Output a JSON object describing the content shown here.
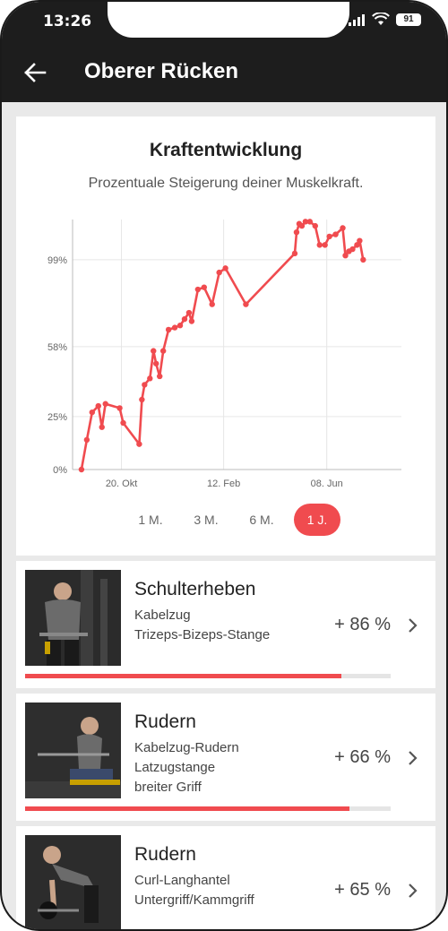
{
  "status": {
    "time": "13:26",
    "battery": "91"
  },
  "header": {
    "title": "Oberer Rücken"
  },
  "chart_card": {
    "title": "Kraftentwicklung",
    "subtitle": "Prozentuale Steigerung deiner Muskelkraft.",
    "range_tabs": [
      {
        "label": "1 M.",
        "active": false
      },
      {
        "label": "3 M.",
        "active": false
      },
      {
        "label": "6 M.",
        "active": false
      },
      {
        "label": "1 J.",
        "active": true
      }
    ]
  },
  "chart_data": {
    "type": "line",
    "y_ticks": [
      {
        "value": 0,
        "label": "0%"
      },
      {
        "value": 25,
        "label": "25%"
      },
      {
        "value": 58,
        "label": "58%"
      },
      {
        "value": 99,
        "label": "99%"
      }
    ],
    "x_ticks": [
      {
        "value": 45,
        "label": "20. Okt"
      },
      {
        "value": 160,
        "label": "12. Feb"
      },
      {
        "value": 276,
        "label": "08. Jun"
      }
    ],
    "xlim": [
      -10,
      360
    ],
    "ylim": [
      0,
      118
    ],
    "grid": true,
    "color": "#f04b4f",
    "series": [
      {
        "points": [
          [
            0,
            0
          ],
          [
            6,
            14
          ],
          [
            12,
            27
          ],
          [
            19,
            30
          ],
          [
            23,
            20
          ],
          [
            27,
            31
          ],
          [
            43,
            29
          ],
          [
            47,
            22
          ],
          [
            65,
            12
          ],
          [
            68,
            33
          ],
          [
            71,
            40
          ],
          [
            77,
            43
          ],
          [
            81,
            56
          ],
          [
            84,
            50
          ],
          [
            88,
            44
          ],
          [
            92,
            56
          ],
          [
            98,
            66
          ],
          [
            105,
            67
          ],
          [
            111,
            68
          ],
          [
            116,
            71
          ],
          [
            121,
            74
          ],
          [
            124,
            70
          ],
          [
            131,
            85
          ],
          [
            138,
            86
          ],
          [
            147,
            78
          ],
          [
            155,
            93
          ],
          [
            162,
            95
          ],
          [
            185,
            78
          ],
          [
            240,
            102
          ],
          [
            242,
            112
          ],
          [
            245,
            116
          ],
          [
            248,
            115
          ],
          [
            252,
            117
          ],
          [
            257,
            117
          ],
          [
            263,
            115
          ],
          [
            268,
            106
          ],
          [
            274,
            106
          ],
          [
            279,
            110
          ],
          [
            286,
            111
          ],
          [
            294,
            114
          ],
          [
            297,
            101
          ],
          [
            301,
            103
          ],
          [
            305,
            104
          ],
          [
            310,
            106
          ],
          [
            313,
            108
          ],
          [
            317,
            99
          ]
        ]
      }
    ]
  },
  "exercises": [
    {
      "name": "Schulterheben",
      "details": [
        "Kabelzug",
        "Trizeps-Bizeps-Stange"
      ],
      "percent_label": "+ 86 %",
      "progress": 0.865,
      "icon": "chevron-right-icon"
    },
    {
      "name": "Rudern",
      "details": [
        "Kabelzug-Rudern",
        "Latzugstange",
        "breiter Griff"
      ],
      "percent_label": "+ 66 %",
      "progress": 0.887,
      "icon": "chevron-right-icon"
    },
    {
      "name": "Rudern",
      "details": [
        "Curl-Langhantel",
        "Untergriff/Kammgriff"
      ],
      "percent_label": "+ 65 %",
      "progress": 0.85,
      "icon": "chevron-right-icon"
    }
  ]
}
